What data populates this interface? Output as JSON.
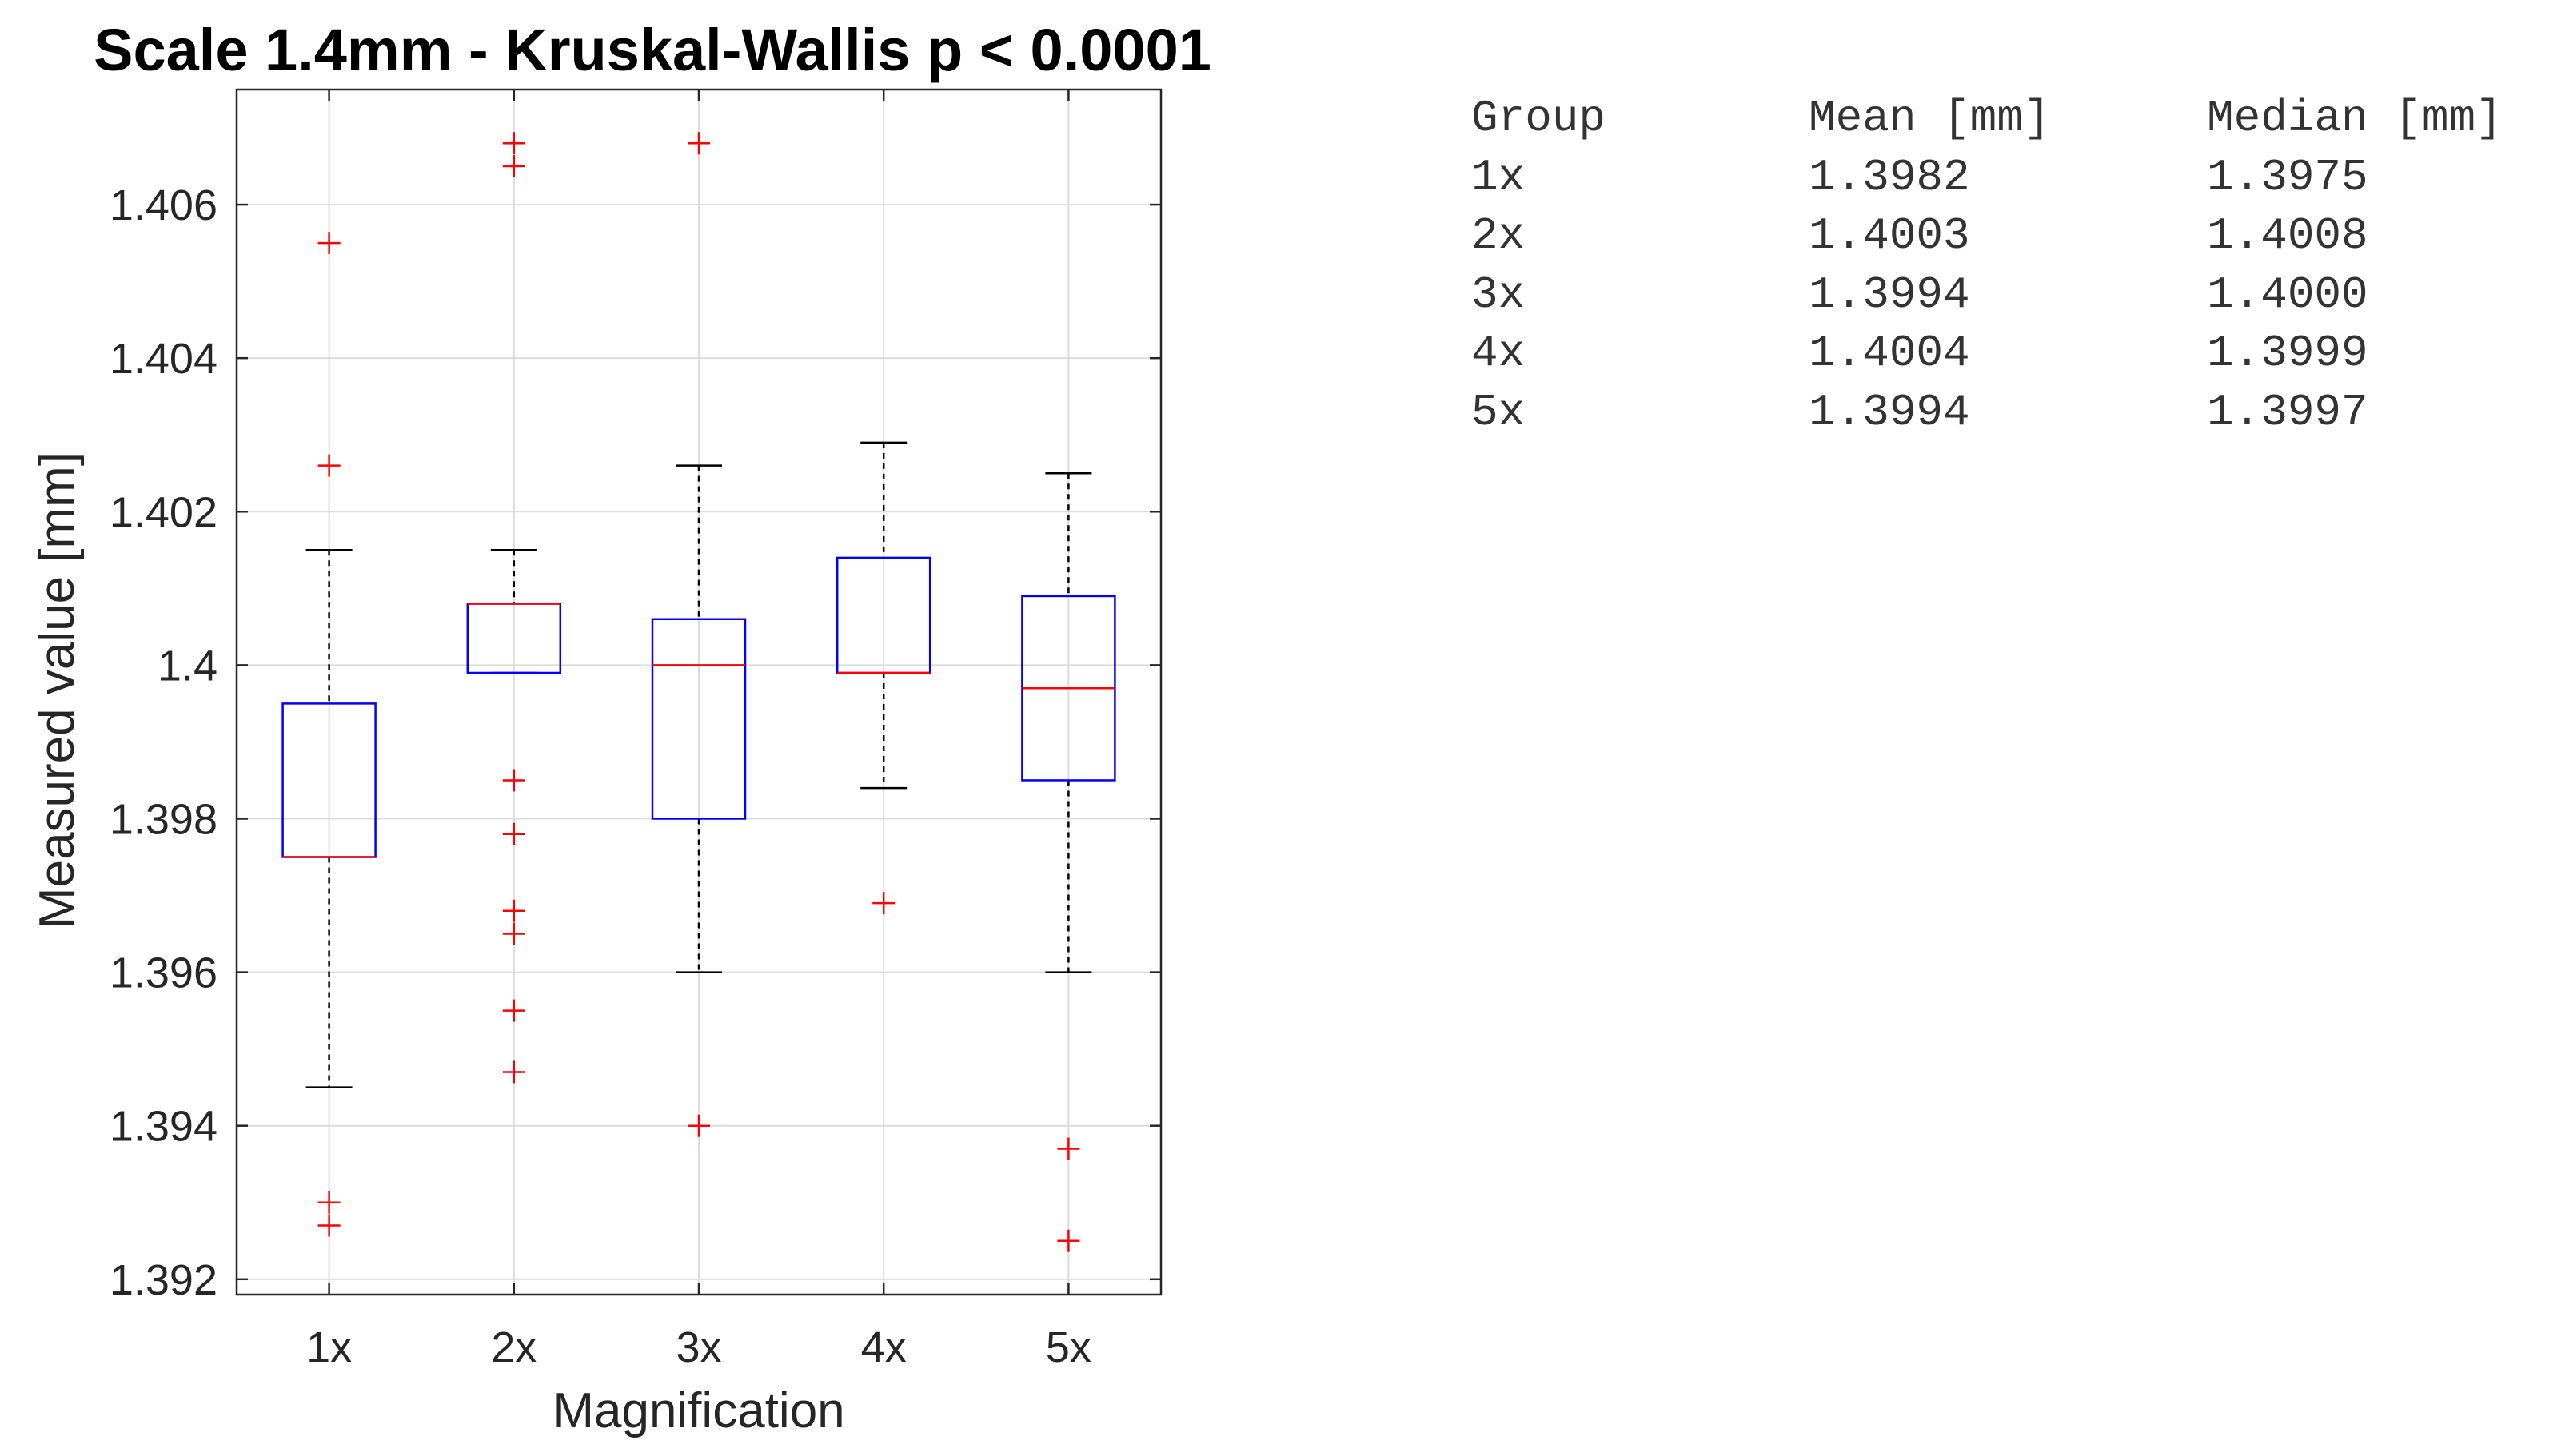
{
  "chart_data": {
    "type": "box",
    "title": "Scale 1.4mm - Kruskal-Wallis p < 0.0001",
    "xlabel": "Magnification",
    "ylabel": "Measured value [mm]",
    "ylim": [
      1.3918,
      1.4075
    ],
    "yticks": [
      1.392,
      1.394,
      1.396,
      1.398,
      1.4,
      1.402,
      1.404,
      1.406
    ],
    "ytick_labels": [
      "1.392",
      "1.394",
      "1.396",
      "1.398",
      "1.4",
      "1.402",
      "1.404",
      "1.406"
    ],
    "categories": [
      "1x",
      "2x",
      "3x",
      "4x",
      "5x"
    ],
    "grid": true,
    "colors": {
      "box": "#0000ff",
      "median": "#ff0000",
      "whisker": "#000000",
      "outlier": "#ff0000",
      "grid": "#dcdcdc",
      "axis": "#262626"
    },
    "boxes": [
      {
        "category": "1x",
        "q1": 1.3975,
        "median": 1.3975,
        "q3": 1.3995,
        "whisker_low": 1.3945,
        "whisker_high": 1.4015,
        "outliers": [
          1.4055,
          1.4026,
          1.393,
          1.3927
        ]
      },
      {
        "category": "2x",
        "q1": 1.3999,
        "median": 1.4008,
        "q3": 1.4008,
        "whisker_low": 1.3999,
        "whisker_high": 1.4015,
        "outliers": [
          1.4068,
          1.4065,
          1.3985,
          1.3978,
          1.3968,
          1.3965,
          1.3955,
          1.3947
        ]
      },
      {
        "category": "3x",
        "q1": 1.398,
        "median": 1.4,
        "q3": 1.4006,
        "whisker_low": 1.396,
        "whisker_high": 1.4026,
        "outliers": [
          1.4068,
          1.394
        ]
      },
      {
        "category": "4x",
        "q1": 1.3999,
        "median": 1.3999,
        "q3": 1.4014,
        "whisker_low": 1.3984,
        "whisker_high": 1.4029,
        "outliers": [
          1.3969
        ]
      },
      {
        "category": "5x",
        "q1": 1.3985,
        "median": 1.3997,
        "q3": 1.4009,
        "whisker_low": 1.396,
        "whisker_high": 1.4025,
        "outliers": [
          1.3937,
          1.3925
        ]
      }
    ]
  },
  "stats_table": {
    "header": [
      "Group",
      "Mean [mm]",
      "Median [mm]"
    ],
    "rows": [
      [
        "1x",
        "1.3982",
        "1.3975"
      ],
      [
        "2x",
        "1.4003",
        "1.4008"
      ],
      [
        "3x",
        "1.3994",
        "1.4000"
      ],
      [
        "4x",
        "1.4004",
        "1.3999"
      ],
      [
        "5x",
        "1.3994",
        "1.3997"
      ]
    ]
  }
}
